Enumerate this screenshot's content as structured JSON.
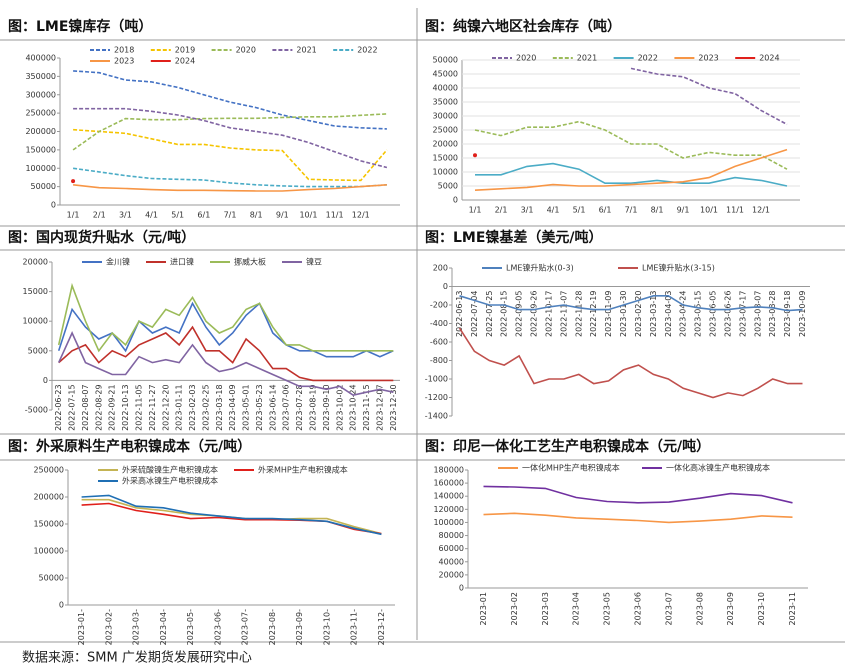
{
  "chart_data": [
    {
      "type": "line",
      "title": "图：LME镍库存（吨）",
      "categories": [
        "1/1",
        "2/1",
        "3/1",
        "4/1",
        "5/1",
        "6/1",
        "7/1",
        "8/1",
        "9/1",
        "10/1",
        "11/1",
        "12/1",
        null
      ],
      "ylim": [
        0,
        400000
      ],
      "yticks": [
        0,
        50000,
        100000,
        150000,
        200000,
        250000,
        300000,
        350000,
        400000
      ],
      "grid": false,
      "series": [
        {
          "name": "2018",
          "color": "#4472c4",
          "dashed": true,
          "values": [
            365000,
            360000,
            340000,
            335000,
            320000,
            300000,
            280000,
            265000,
            245000,
            230000,
            215000,
            210000,
            207000
          ]
        },
        {
          "name": "2019",
          "color": "#f5c400",
          "dashed": true,
          "values": [
            205000,
            200000,
            195000,
            180000,
            165000,
            165000,
            155000,
            150000,
            148000,
            70000,
            68000,
            67000,
            150000
          ]
        },
        {
          "name": "2020",
          "color": "#9bbb59",
          "dashed": true,
          "values": [
            150000,
            200000,
            235000,
            232000,
            232000,
            235000,
            236000,
            236000,
            238000,
            240000,
            240000,
            244000,
            248000
          ]
        },
        {
          "name": "2021",
          "color": "#8064a2",
          "dashed": true,
          "values": [
            262000,
            262000,
            262000,
            255000,
            245000,
            230000,
            210000,
            200000,
            190000,
            170000,
            145000,
            120000,
            102000
          ]
        },
        {
          "name": "2022",
          "color": "#4bacc6",
          "dashed": true,
          "values": [
            100000,
            90000,
            80000,
            72000,
            70000,
            68000,
            60000,
            55000,
            52000,
            50000,
            50000,
            50000,
            55000
          ]
        },
        {
          "name": "2023",
          "color": "#f79646",
          "dashed": false,
          "values": [
            55000,
            47000,
            45000,
            42000,
            40000,
            40000,
            39000,
            38000,
            38000,
            42000,
            45000,
            50000,
            55000
          ]
        },
        {
          "name": "2024",
          "color": "#e0201b",
          "dashed": false,
          "values": [
            65000,
            null,
            null,
            null,
            null,
            null,
            null,
            null,
            null,
            null,
            null,
            null,
            null
          ]
        }
      ]
    },
    {
      "type": "line",
      "title": "图：纯镍六地区社会库存（吨）",
      "categories": [
        "1/1",
        "2/1",
        "3/1",
        "4/1",
        "5/1",
        "6/1",
        "7/1",
        "8/1",
        "9/1",
        "10/1",
        "11/1",
        "12/1",
        null
      ],
      "ylim": [
        0,
        50000
      ],
      "yticks": [
        0,
        5000,
        10000,
        15000,
        20000,
        25000,
        30000,
        35000,
        40000,
        45000,
        50000
      ],
      "grid": true,
      "series": [
        {
          "name": "2020",
          "color": "#8064a2",
          "dashed": true,
          "values": [
            null,
            null,
            null,
            null,
            null,
            null,
            47000,
            45000,
            44000,
            40000,
            38000,
            32000,
            27000
          ]
        },
        {
          "name": "2021",
          "color": "#9bbb59",
          "dashed": true,
          "values": [
            25000,
            23000,
            26000,
            26000,
            28000,
            25000,
            20000,
            20000,
            15000,
            17000,
            16000,
            16000,
            11000
          ]
        },
        {
          "name": "2022",
          "color": "#4bacc6",
          "dashed": false,
          "values": [
            9000,
            9000,
            12000,
            13000,
            11000,
            6000,
            6000,
            7000,
            6000,
            6000,
            8000,
            7000,
            5000
          ]
        },
        {
          "name": "2023",
          "color": "#f79646",
          "dashed": false,
          "values": [
            3500,
            4000,
            4500,
            5500,
            5000,
            5000,
            5500,
            6000,
            6500,
            8000,
            12000,
            15000,
            18000
          ]
        },
        {
          "name": "2024",
          "color": "#e0201b",
          "dashed": false,
          "values": [
            16000,
            null,
            null,
            null,
            null,
            null,
            null,
            null,
            null,
            null,
            null,
            null,
            null
          ]
        }
      ]
    },
    {
      "type": "line",
      "title": "图：国内现货升贴水（元/吨）",
      "categories": [
        "2022-06-23",
        "2022-07-15",
        "2022-08-07",
        "2022-08-29",
        "2022-09-21",
        "2022-10-13",
        "2022-11-05",
        "2022-11-27",
        "2022-12-20",
        "2023-01-11",
        "2023-02-03",
        "2023-02-25",
        "2023-03-18",
        "2023-04-09",
        "2023-05-01",
        "2023-05-23",
        "2023-06-14",
        "2023-07-06",
        "2023-07-28",
        "2023-08-19",
        "2023-09-10",
        "2023-10-02",
        "2023-10-24",
        "2023-11-15",
        "2023-12-07",
        "2023-12-30"
      ],
      "ylim": [
        -5000,
        20000
      ],
      "yticks": [
        -5000,
        0,
        5000,
        10000,
        15000,
        20000
      ],
      "grid": false,
      "series": [
        {
          "name": "金川镍",
          "color": "#4472c4",
          "dashed": false,
          "values": [
            5000,
            12000,
            9000,
            7000,
            8000,
            5000,
            10000,
            8000,
            9000,
            8000,
            13000,
            9000,
            6000,
            8000,
            11000,
            13000,
            8000,
            6000,
            5000,
            5000,
            4000,
            4000,
            4000,
            5000,
            4000,
            5000
          ]
        },
        {
          "name": "进口镍",
          "color": "#c0312b",
          "dashed": false,
          "values": [
            3000,
            5000,
            6000,
            3000,
            5000,
            4000,
            6000,
            7000,
            8000,
            6000,
            9000,
            5000,
            5000,
            3000,
            7000,
            5000,
            2000,
            2000,
            500,
            0,
            0,
            0,
            0,
            0,
            0,
            0
          ]
        },
        {
          "name": "挪威大板",
          "color": "#9bbb59",
          "dashed": false,
          "values": [
            6000,
            16000,
            10000,
            5000,
            8000,
            6000,
            10000,
            9000,
            12000,
            11000,
            14000,
            10000,
            8000,
            9000,
            12000,
            13000,
            9000,
            6000,
            6000,
            5000,
            5000,
            5000,
            5000,
            5000,
            5000,
            5000
          ]
        },
        {
          "name": "镍豆",
          "color": "#8064a2",
          "dashed": false,
          "values": [
            3000,
            8000,
            3000,
            2000,
            1000,
            1000,
            4000,
            3000,
            3500,
            3000,
            6000,
            3000,
            1500,
            2000,
            3000,
            2000,
            1000,
            0,
            -1000,
            -1000,
            -1500,
            -1000,
            -2500,
            -2000,
            -1500,
            -2000
          ]
        }
      ]
    },
    {
      "type": "line",
      "title": "图：LME镍基差（美元/吨）",
      "categories": [
        "2022-06-13",
        "2022-07-04",
        "2022-07-25",
        "2022-08-15",
        "2022-09-05",
        "2022-09-26",
        "2022-10-17",
        "2022-11-07",
        "2022-11-28",
        "2022-12-19",
        "2023-01-09",
        "2023-01-30",
        "2023-02-20",
        "2023-03-13",
        "2023-04-03",
        "2023-04-24",
        "2023-05-15",
        "2023-06-05",
        "2023-06-26",
        "2023-07-17",
        "2023-08-07",
        "2023-08-28",
        "2023-09-18",
        "2023-10-09"
      ],
      "ylim": [
        -1400,
        200
      ],
      "yticks": [
        -1400,
        -1200,
        -1000,
        -800,
        -600,
        -400,
        -200,
        0,
        200
      ],
      "grid": false,
      "series": [
        {
          "name": "LME镍升贴水(0-3)",
          "color": "#4f81bd",
          "dashed": false,
          "values": [
            -100,
            -150,
            -200,
            -200,
            -250,
            -250,
            -220,
            -200,
            -230,
            -250,
            -250,
            -200,
            -150,
            -100,
            -100,
            -200,
            -230,
            -250,
            -250,
            -230,
            -220,
            -230,
            -260,
            -250
          ]
        },
        {
          "name": "LME镍升贴水(3-15)",
          "color": "#c0504d",
          "dashed": false,
          "values": [
            -450,
            -700,
            -800,
            -850,
            -750,
            -1050,
            -1000,
            -1000,
            -950,
            -1050,
            -1020,
            -900,
            -850,
            -950,
            -1000,
            -1100,
            -1150,
            -1200,
            -1150,
            -1180,
            -1100,
            -1000,
            -1050,
            -1050
          ]
        }
      ]
    },
    {
      "type": "line",
      "title": "图：外采原料生产电积镍成本（元/吨）",
      "categories": [
        "2023-01-",
        "2023-02-",
        "2023-03-",
        "2023-04-",
        "2023-05-",
        "2023-06-",
        "2023-07-",
        "2023-08-",
        "2023-09-",
        "2023-10-",
        "2023-11-",
        "2023-12-"
      ],
      "ylim": [
        0,
        250000
      ],
      "yticks": [
        0,
        50000,
        100000,
        150000,
        200000,
        250000
      ],
      "grid": false,
      "series": [
        {
          "name": "外采硫酸镍生产电积镍成本",
          "color": "#c4b454",
          "dashed": false,
          "values": [
            195000,
            195000,
            180000,
            175000,
            168000,
            165000,
            160000,
            158000,
            160000,
            160000,
            145000,
            132000
          ]
        },
        {
          "name": "外采MHP生产电积镍成本",
          "color": "#e0201b",
          "dashed": false,
          "values": [
            185000,
            188000,
            175000,
            168000,
            160000,
            162000,
            158000,
            158000,
            157000,
            155000,
            140000,
            132000
          ]
        },
        {
          "name": "外采高冰镍生产电积镍成本",
          "color": "#1f6fb4",
          "dashed": false,
          "values": [
            200000,
            203000,
            183000,
            180000,
            170000,
            165000,
            160000,
            160000,
            158000,
            155000,
            142000,
            131000
          ]
        }
      ]
    },
    {
      "type": "line",
      "title": "图：印尼一体化工艺生产电积镍成本（元/吨）",
      "categories": [
        "2023-01",
        "2023-02",
        "2023-03",
        "2023-04",
        "2023-05",
        "2023-06",
        "2023-07",
        "2023-08",
        "2023-09",
        "2023-10",
        "2023-11"
      ],
      "ylim": [
        0,
        180000
      ],
      "yticks": [
        0,
        20000,
        40000,
        60000,
        80000,
        100000,
        120000,
        140000,
        160000,
        180000
      ],
      "grid": false,
      "series": [
        {
          "name": "一体化MHP生产电积镍成本",
          "color": "#f79646",
          "dashed": false,
          "values": [
            112000,
            114000,
            111000,
            107000,
            105000,
            103000,
            100000,
            102000,
            105000,
            110000,
            108000
          ]
        },
        {
          "name": "一体化高冰镍生产电积镍成本",
          "color": "#7030a0",
          "dashed": false,
          "values": [
            155000,
            154000,
            152000,
            138000,
            132000,
            130000,
            131000,
            137000,
            144000,
            141000,
            130000
          ]
        }
      ]
    }
  ],
  "footer": "数据来源：SMM   广发期货发展研究中心"
}
